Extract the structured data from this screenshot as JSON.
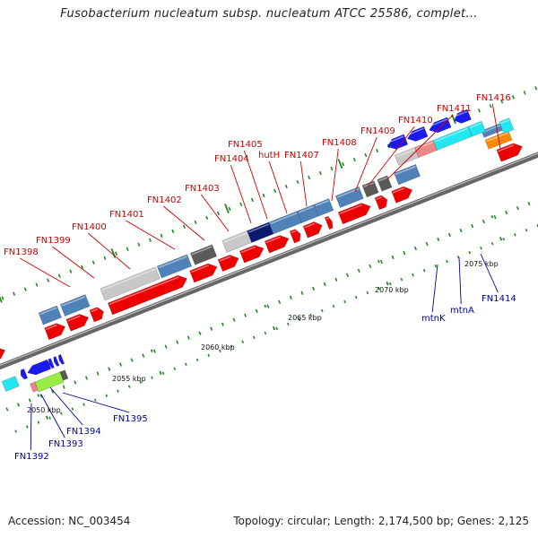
{
  "title": "Fusobacterium nucleatum subsp. nucleatum ATCC 25586, complet...",
  "footer": {
    "accession": "Accession: NC_003454",
    "summary": "Topology: circular; Length: 2,174,500 bp; Genes: 2,125"
  },
  "scale_labels": [
    "2050 kbp",
    "2055 kbp",
    "2060 kbp",
    "2065 kbp",
    "2070 kbp",
    "2075 kbp"
  ],
  "top_labels": [
    "FN1398",
    "FN1399",
    "FN1400",
    "FN1401",
    "FN1402",
    "FN1403",
    "FN1404",
    "FN1405",
    "hutH",
    "FN1407",
    "FN1408",
    "FN1409",
    "FN1410",
    "FN1411",
    "FN1416"
  ],
  "bottom_labels": [
    "FN1392",
    "FN1393",
    "FN1394",
    "FN1395",
    "mtnK",
    "mtnA",
    "FN1414"
  ],
  "colors": {
    "forward_cds": "#ee0000",
    "reverse_cds": "#1a1aee",
    "steel_blue": "#4f82b8",
    "light_gray": "#c8c8c8",
    "dark_gray": "#5a5a5a",
    "navy": "#0a1a6e",
    "cyan": "#22e6f0",
    "pink": "#ee8888",
    "lime": "#99ee44",
    "orange": "#ff8800",
    "backbone": "#8a8a8a",
    "tick_green": "#1f8a1f",
    "top_label": "#cc0000",
    "bottom_label": "#000099"
  }
}
